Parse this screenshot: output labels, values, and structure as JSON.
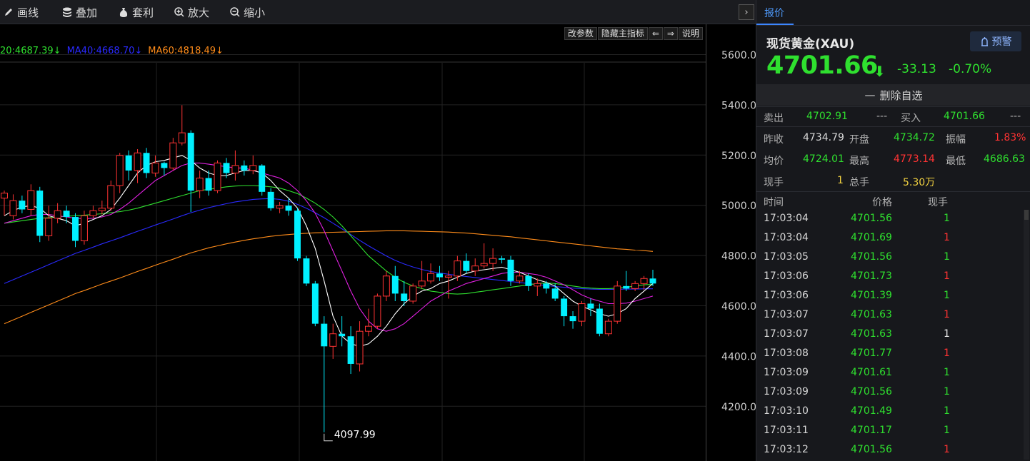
{
  "toolbar": {
    "draw": "画线",
    "overlay": "叠加",
    "arbitrage": "套利",
    "zoom_in": "放大",
    "zoom_out": "缩小",
    "collapse": "›"
  },
  "chart_buttons": {
    "params": "改参数",
    "hide_indicator": "隐藏主指标",
    "left": "⇐",
    "right": "⇒",
    "help": "说明"
  },
  "ma_legend": {
    "ma20": "20:4687.39↓",
    "ma40": "MA40:4668.70↓",
    "ma60": "MA60:4818.49↓",
    "ma20_color": "#2fe02f",
    "ma40_color": "#2a2aff",
    "ma60_color": "#ff8c1a"
  },
  "chart_data": {
    "type": "candlestick",
    "ylim": [
      4097.99,
      5650
    ],
    "y_ticks": [
      "5600.00",
      "5400.00",
      "5200.00",
      "5000.00",
      "4800.00",
      "4600.00",
      "4400.00",
      "4200.00"
    ],
    "low_label": "4097.99",
    "up_color": "#ff3333",
    "down_color": "#00f0ff",
    "candles": [
      {
        "o": 5030,
        "c": 5050,
        "h": 5060,
        "l": 4960
      },
      {
        "o": 4960,
        "c": 5020,
        "h": 5045,
        "l": 4945
      },
      {
        "o": 5020,
        "c": 4985,
        "h": 5040,
        "l": 4970
      },
      {
        "o": 4985,
        "c": 5060,
        "h": 5085,
        "l": 4960
      },
      {
        "o": 5060,
        "c": 4880,
        "h": 5075,
        "l": 4855
      },
      {
        "o": 4880,
        "c": 4950,
        "h": 5000,
        "l": 4860
      },
      {
        "o": 4950,
        "c": 4980,
        "h": 5010,
        "l": 4930
      },
      {
        "o": 4980,
        "c": 4955,
        "h": 5000,
        "l": 4930
      },
      {
        "o": 4955,
        "c": 4860,
        "h": 4970,
        "l": 4835
      },
      {
        "o": 4860,
        "c": 4960,
        "h": 4980,
        "l": 4845
      },
      {
        "o": 4960,
        "c": 4980,
        "h": 5000,
        "l": 4950
      },
      {
        "o": 4980,
        "c": 4990,
        "h": 5020,
        "l": 4965
      },
      {
        "o": 4990,
        "c": 5080,
        "h": 5100,
        "l": 4980
      },
      {
        "o": 5080,
        "c": 5200,
        "h": 5210,
        "l": 5050
      },
      {
        "o": 5200,
        "c": 5140,
        "h": 5220,
        "l": 5100
      },
      {
        "o": 5140,
        "c": 5210,
        "h": 5225,
        "l": 5090
      },
      {
        "o": 5210,
        "c": 5130,
        "h": 5230,
        "l": 5110
      },
      {
        "o": 5130,
        "c": 5170,
        "h": 5200,
        "l": 5115
      },
      {
        "o": 5170,
        "c": 5150,
        "h": 5175,
        "l": 5120
      },
      {
        "o": 5150,
        "c": 5250,
        "h": 5270,
        "l": 5140
      },
      {
        "o": 5250,
        "c": 5290,
        "h": 5400,
        "l": 5240
      },
      {
        "o": 5290,
        "c": 5060,
        "h": 5300,
        "l": 4975
      },
      {
        "o": 5060,
        "c": 5110,
        "h": 5140,
        "l": 5030
      },
      {
        "o": 5110,
        "c": 5060,
        "h": 5140,
        "l": 5040
      },
      {
        "o": 5060,
        "c": 5170,
        "h": 5180,
        "l": 5050
      },
      {
        "o": 5170,
        "c": 5130,
        "h": 5190,
        "l": 5110
      },
      {
        "o": 5130,
        "c": 5160,
        "h": 5220,
        "l": 5100
      },
      {
        "o": 5160,
        "c": 5140,
        "h": 5180,
        "l": 5120
      },
      {
        "o": 5140,
        "c": 5160,
        "h": 5200,
        "l": 5125
      },
      {
        "o": 5160,
        "c": 5055,
        "h": 5165,
        "l": 5040
      },
      {
        "o": 5055,
        "c": 4990,
        "h": 5070,
        "l": 4980
      },
      {
        "o": 4990,
        "c": 5000,
        "h": 5015,
        "l": 4970
      },
      {
        "o": 5000,
        "c": 4980,
        "h": 5030,
        "l": 4960
      },
      {
        "o": 4980,
        "c": 4790,
        "h": 4990,
        "l": 4780
      },
      {
        "o": 4790,
        "c": 4690,
        "h": 4800,
        "l": 4680
      },
      {
        "o": 4690,
        "c": 4530,
        "h": 4700,
        "l": 4520
      },
      {
        "o": 4530,
        "c": 4440,
        "h": 4560,
        "l": 4098
      },
      {
        "o": 4440,
        "c": 4490,
        "h": 4530,
        "l": 4390
      },
      {
        "o": 4490,
        "c": 4480,
        "h": 4560,
        "l": 4440
      },
      {
        "o": 4480,
        "c": 4370,
        "h": 4520,
        "l": 4330
      },
      {
        "o": 4370,
        "c": 4500,
        "h": 4540,
        "l": 4340
      },
      {
        "o": 4500,
        "c": 4520,
        "h": 4590,
        "l": 4480
      },
      {
        "o": 4520,
        "c": 4640,
        "h": 4650,
        "l": 4510
      },
      {
        "o": 4640,
        "c": 4720,
        "h": 4740,
        "l": 4620
      },
      {
        "o": 4720,
        "c": 4650,
        "h": 4760,
        "l": 4620
      },
      {
        "o": 4650,
        "c": 4620,
        "h": 4700,
        "l": 4600
      },
      {
        "o": 4620,
        "c": 4680,
        "h": 4690,
        "l": 4610
      },
      {
        "o": 4680,
        "c": 4700,
        "h": 4780,
        "l": 4670
      },
      {
        "o": 4700,
        "c": 4730,
        "h": 4770,
        "l": 4690
      },
      {
        "o": 4730,
        "c": 4715,
        "h": 4760,
        "l": 4700
      },
      {
        "o": 4715,
        "c": 4720,
        "h": 4740,
        "l": 4630
      },
      {
        "o": 4720,
        "c": 4780,
        "h": 4800,
        "l": 4700
      },
      {
        "o": 4780,
        "c": 4740,
        "h": 4810,
        "l": 4730
      },
      {
        "o": 4740,
        "c": 4760,
        "h": 4790,
        "l": 4720
      },
      {
        "o": 4760,
        "c": 4770,
        "h": 4850,
        "l": 4750
      },
      {
        "o": 4770,
        "c": 4790,
        "h": 4830,
        "l": 4740
      },
      {
        "o": 4790,
        "c": 4785,
        "h": 4800,
        "l": 4770
      },
      {
        "o": 4785,
        "c": 4700,
        "h": 4800,
        "l": 4680
      },
      {
        "o": 4700,
        "c": 4720,
        "h": 4740,
        "l": 4690
      },
      {
        "o": 4720,
        "c": 4680,
        "h": 4730,
        "l": 4660
      },
      {
        "o": 4680,
        "c": 4690,
        "h": 4710,
        "l": 4640
      },
      {
        "o": 4690,
        "c": 4670,
        "h": 4700,
        "l": 4650
      },
      {
        "o": 4670,
        "c": 4630,
        "h": 4690,
        "l": 4620
      },
      {
        "o": 4630,
        "c": 4560,
        "h": 4640,
        "l": 4520
      },
      {
        "o": 4560,
        "c": 4540,
        "h": 4580,
        "l": 4510
      },
      {
        "o": 4540,
        "c": 4610,
        "h": 4620,
        "l": 4520
      },
      {
        "o": 4610,
        "c": 4590,
        "h": 4630,
        "l": 4560
      },
      {
        "o": 4590,
        "c": 4490,
        "h": 4610,
        "l": 4480
      },
      {
        "o": 4490,
        "c": 4540,
        "h": 4550,
        "l": 4480
      },
      {
        "o": 4540,
        "c": 4680,
        "h": 4700,
        "l": 4530
      },
      {
        "o": 4680,
        "c": 4670,
        "h": 4740,
        "l": 4660
      },
      {
        "o": 4670,
        "c": 4690,
        "h": 4700,
        "l": 4660
      },
      {
        "o": 4690,
        "c": 4710,
        "h": 4720,
        "l": 4665
      },
      {
        "o": 4710,
        "c": 4690,
        "h": 4745,
        "l": 4680
      }
    ],
    "ma5": [
      4960,
      4980,
      4995,
      5000,
      4990,
      4960,
      4950,
      4940,
      4920,
      4930,
      4945,
      4960,
      4985,
      5030,
      5080,
      5130,
      5160,
      5175,
      5180,
      5190,
      5200,
      5180,
      5150,
      5130,
      5120,
      5120,
      5130,
      5140,
      5140,
      5130,
      5100,
      5060,
      5030,
      4990,
      4920,
      4830,
      4700,
      4560,
      4480,
      4450,
      4440,
      4450,
      4480,
      4520,
      4570,
      4610,
      4640,
      4660,
      4670,
      4690,
      4700,
      4715,
      4730,
      4740,
      4745,
      4750,
      4755,
      4745,
      4735,
      4720,
      4705,
      4695,
      4680,
      4650,
      4620,
      4600,
      4585,
      4570,
      4560,
      4570,
      4590,
      4630,
      4660,
      4690
    ],
    "ma10": [
      4930,
      4940,
      4950,
      4960,
      4965,
      4965,
      4960,
      4955,
      4950,
      4948,
      4950,
      4955,
      4965,
      4985,
      5010,
      5040,
      5070,
      5100,
      5120,
      5140,
      5160,
      5170,
      5170,
      5165,
      5160,
      5155,
      5150,
      5150,
      5140,
      5130,
      5120,
      5110,
      5090,
      5060,
      5020,
      4970,
      4900,
      4820,
      4740,
      4660,
      4590,
      4540,
      4510,
      4500,
      4510,
      4530,
      4560,
      4590,
      4620,
      4640,
      4660,
      4675,
      4690,
      4700,
      4710,
      4720,
      4730,
      4735,
      4735,
      4730,
      4725,
      4715,
      4700,
      4685,
      4665,
      4645,
      4630,
      4620,
      4610,
      4610,
      4612,
      4620,
      4630,
      4640
    ],
    "ma20": [
      4930,
      4935,
      4940,
      4945,
      4950,
      4952,
      4955,
      4958,
      4960,
      4962,
      4965,
      4968,
      4972,
      4976,
      4982,
      4990,
      5000,
      5010,
      5020,
      5030,
      5040,
      5050,
      5060,
      5065,
      5070,
      5075,
      5078,
      5080,
      5080,
      5078,
      5075,
      5070,
      5060,
      5048,
      5030,
      5010,
      4985,
      4955,
      4920,
      4880,
      4840,
      4800,
      4770,
      4740,
      4715,
      4695,
      4680,
      4670,
      4660,
      4655,
      4650,
      4648,
      4650,
      4655,
      4660,
      4665,
      4670,
      4675,
      4680,
      4685,
      4690,
      4692,
      4690,
      4685,
      4680,
      4675,
      4672,
      4670,
      4670,
      4672,
      4675,
      4680,
      4685,
      4687
    ],
    "ma40": [
      4690,
      4705,
      4720,
      4735,
      4750,
      4765,
      4780,
      4795,
      4810,
      4822,
      4835,
      4848,
      4860,
      4872,
      4885,
      4898,
      4910,
      4923,
      4935,
      4947,
      4960,
      4972,
      4982,
      4992,
      5000,
      5008,
      5015,
      5020,
      5025,
      5027,
      5028,
      5025,
      5018,
      5005,
      4990,
      4972,
      4952,
      4930,
      4908,
      4885,
      4862,
      4840,
      4820,
      4800,
      4782,
      4768,
      4756,
      4746,
      4738,
      4732,
      4727,
      4722,
      4718,
      4714,
      4710,
      4706,
      4702,
      4698,
      4694,
      4690,
      4686,
      4682,
      4678,
      4675,
      4672,
      4670,
      4668,
      4667,
      4667,
      4667,
      4668,
      4668,
      4669,
      4669
    ],
    "ma60": [
      4530,
      4545,
      4560,
      4575,
      4590,
      4605,
      4620,
      4635,
      4650,
      4662,
      4675,
      4688,
      4700,
      4712,
      4725,
      4738,
      4750,
      4763,
      4775,
      4787,
      4800,
      4812,
      4822,
      4832,
      4840,
      4848,
      4855,
      4862,
      4868,
      4873,
      4878,
      4882,
      4885,
      4888,
      4890,
      4892,
      4893,
      4894,
      4895,
      4896,
      4897,
      4898,
      4899,
      4900,
      4900,
      4900,
      4899,
      4898,
      4897,
      4896,
      4895,
      4893,
      4891,
      4888,
      4885,
      4882,
      4879,
      4876,
      4872,
      4868,
      4864,
      4860,
      4856,
      4852,
      4848,
      4844,
      4840,
      4836,
      4832,
      4828,
      4826,
      4823,
      4821,
      4818
    ]
  },
  "panel": {
    "tab": "报价",
    "name": "现货黄金(XAU)",
    "alert": "预警",
    "price": "4701.66",
    "arrow": "⬇",
    "change": "-33.13",
    "change_pct": "-0.70%",
    "remove": "删除自选",
    "remove_icon": "—",
    "sell_label": "卖出",
    "sell": "4702.91",
    "sell_vol": "---",
    "buy_label": "买入",
    "buy": "4701.66",
    "buy_vol": "---",
    "prev_close_label": "昨收",
    "prev_close": "4734.79",
    "open_label": "开盘",
    "open": "4734.72",
    "amp_label": "振幅",
    "amp": "1.83%",
    "avg_label": "均价",
    "avg": "4724.01",
    "high_label": "最高",
    "high": "4773.14",
    "low_label": "最低",
    "low": "4686.63",
    "cur_vol_label": "现手",
    "cur_vol": "1",
    "total_vol_label": "总手",
    "total_vol": "5.30万",
    "up_color": "#ff3333",
    "down_color": "#2fe02f"
  },
  "ticks": {
    "header": {
      "time": "时间",
      "price": "价格",
      "vol": "现手"
    },
    "rows": [
      {
        "time": "17:03:04",
        "price": "4701.56",
        "vol": "1",
        "dir": "down"
      },
      {
        "time": "17:03:04",
        "price": "4701.69",
        "vol": "1",
        "dir": "up"
      },
      {
        "time": "17:03:05",
        "price": "4701.56",
        "vol": "1",
        "dir": "down"
      },
      {
        "time": "17:03:06",
        "price": "4701.73",
        "vol": "1",
        "dir": "up"
      },
      {
        "time": "17:03:06",
        "price": "4701.39",
        "vol": "1",
        "dir": "down"
      },
      {
        "time": "17:03:07",
        "price": "4701.63",
        "vol": "1",
        "dir": "up"
      },
      {
        "time": "17:03:07",
        "price": "4701.63",
        "vol": "1",
        "dir": "flat"
      },
      {
        "time": "17:03:08",
        "price": "4701.77",
        "vol": "1",
        "dir": "up"
      },
      {
        "time": "17:03:09",
        "price": "4701.61",
        "vol": "1",
        "dir": "down"
      },
      {
        "time": "17:03:09",
        "price": "4701.56",
        "vol": "1",
        "dir": "down"
      },
      {
        "time": "17:03:10",
        "price": "4701.49",
        "vol": "1",
        "dir": "down"
      },
      {
        "time": "17:03:11",
        "price": "4701.17",
        "vol": "1",
        "dir": "down"
      },
      {
        "time": "17:03:12",
        "price": "4701.56",
        "vol": "1",
        "dir": "up"
      }
    ]
  }
}
